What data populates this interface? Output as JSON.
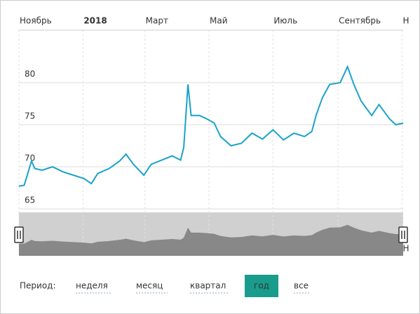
{
  "chart_data": {
    "type": "line",
    "x": [
      0,
      5,
      12,
      15,
      22,
      32,
      42,
      52,
      62,
      69,
      75,
      86,
      96,
      102,
      109,
      119,
      126,
      136,
      146,
      154,
      157,
      161,
      164,
      172,
      179,
      186,
      192,
      202,
      212,
      222,
      232,
      242,
      252,
      262,
      272,
      279,
      283,
      289,
      296,
      306,
      313,
      319,
      326,
      336,
      343,
      353,
      359,
      366
    ],
    "series": [
      {
        "color": "#1aa3c9",
        "values": [
          67.7,
          67.8,
          70.7,
          69.8,
          69.6,
          70,
          69.4,
          69,
          68.6,
          68,
          69.2,
          69.8,
          70.7,
          71.5,
          70.3,
          69,
          70.3,
          70.8,
          71.3,
          70.8,
          72.3,
          79.8,
          76.1,
          76.1,
          75.7,
          75.2,
          73.6,
          72.5,
          72.8,
          74,
          73.3,
          74.4,
          73.2,
          74,
          73.6,
          74.2,
          76.1,
          78.2,
          79.8,
          80,
          81.9,
          79.8,
          77.8,
          76.1,
          77.4,
          75.7,
          75,
          75.2
        ]
      }
    ],
    "xlim": [
      0,
      366
    ],
    "xticks": [
      {
        "value": 0,
        "label": "Ноябрь"
      },
      {
        "value": 61,
        "label": "2018"
      },
      {
        "value": 120,
        "label": "Март"
      },
      {
        "value": 181,
        "label": "Май"
      },
      {
        "value": 242,
        "label": "Июль"
      },
      {
        "value": 304,
        "label": "Сентябрь"
      },
      {
        "value": 365,
        "label": "Н"
      }
    ],
    "ylim": [
      65,
      86
    ],
    "yticks": [
      65,
      70,
      75,
      80
    ],
    "grid": true
  },
  "period": {
    "label": "Период:",
    "options": [
      "неделя",
      "месяц",
      "квартал",
      "год",
      "все"
    ],
    "active": 3
  }
}
